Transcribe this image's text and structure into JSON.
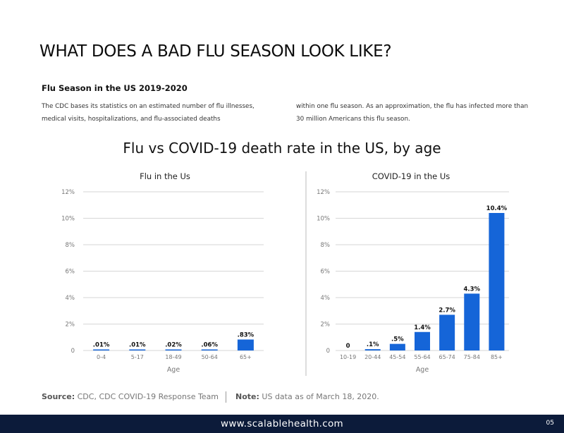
{
  "page": {
    "title": "WHAT DOES A BAD FLU SEASON LOOK LIKE?",
    "subtitle": "Flu Season in the US 2019-2020",
    "paragraph_left": "The CDC bases its statistics on an estimated number of flu illnesses, medical visits, hospitalizations, and flu-associated deaths",
    "paragraph_right": "within one flu season. As an approximation, the flu has infected more than 30 million Americans this flu season.",
    "chart_heading": "Flu vs COVID-19 death rate in the US, by age",
    "source_label": "Source:",
    "source_text": "CDC, CDC COVID-19 Response Team",
    "note_label": "Note:",
    "note_text": "US data as of March 18, 2020.",
    "footer_url": "www.scalablehealth.com",
    "page_number": "05"
  },
  "colors": {
    "bar": "#1565d8",
    "grid": "#c8c8c8",
    "footer_bg": "#0c1b3a"
  },
  "chart_data": [
    {
      "type": "bar",
      "title": "Flu in the Us",
      "xlabel": "Age",
      "ylabel": "",
      "categories": [
        "0-4",
        "5-17",
        "18-49",
        "50-64",
        "65+"
      ],
      "values": [
        0.01,
        0.01,
        0.02,
        0.06,
        0.83
      ],
      "data_labels": [
        ".01%",
        ".01%",
        ".02%",
        ".06%",
        ".83%"
      ],
      "y_ticks": [
        "0",
        "2%",
        "4%",
        "6%",
        "8%",
        "10%",
        "12%"
      ],
      "ylim": [
        0,
        12
      ],
      "grid": true
    },
    {
      "type": "bar",
      "title": "COVID-19 in the Us",
      "xlabel": "Age",
      "ylabel": "",
      "categories": [
        "10-19",
        "20-44",
        "45-54",
        "55-64",
        "65-74",
        "75-84",
        "85+"
      ],
      "values": [
        0,
        0.1,
        0.5,
        1.4,
        2.7,
        4.3,
        10.4
      ],
      "data_labels": [
        "0",
        ".1%",
        ".5%",
        "1.4%",
        "2.7%",
        "4.3%",
        "10.4%"
      ],
      "y_ticks": [
        "0",
        "2%",
        "4%",
        "6%",
        "8%",
        "10%",
        "12%"
      ],
      "ylim": [
        0,
        12
      ],
      "grid": true
    }
  ]
}
